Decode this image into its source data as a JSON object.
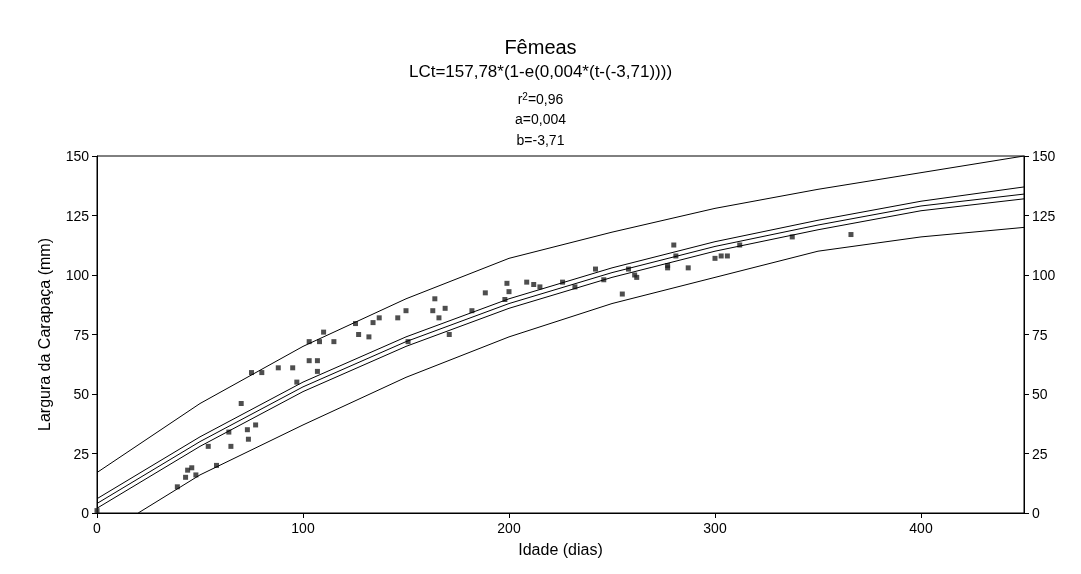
{
  "chart_data": {
    "type": "scatter",
    "title": "Fêmeas",
    "subtitle": "LCt=157,78*(1-e(0,004*(t-(-3,71))))",
    "annotations": [
      "r$^{2}$=0,96",
      "a=0,004",
      "b=-3,71"
    ],
    "xlabel": "Idade (dias)",
    "ylabel": "Largura da Carapaça (mm)",
    "xlim": [
      0,
      450
    ],
    "xticks": [
      0,
      100,
      200,
      300,
      400
    ],
    "ylim": [
      0,
      150
    ],
    "yticks": [
      0,
      25,
      50,
      75,
      100,
      125,
      150
    ],
    "y2lim": [
      0,
      150
    ],
    "y2ticks": [
      0,
      25,
      50,
      75,
      100,
      125,
      150
    ],
    "grid": false,
    "series": [
      {
        "marker": "square",
        "color": "#222222",
        "x": [
          0,
          39,
          43,
          44,
          46,
          48,
          54,
          58,
          64,
          65,
          70,
          73,
          73.5,
          77,
          75,
          80,
          88,
          95,
          97,
          103,
          103,
          107,
          107,
          108,
          110,
          115,
          125.5,
          127,
          132,
          134,
          137,
          146,
          150,
          151,
          163,
          164,
          166,
          169,
          171,
          182,
          188.5,
          199,
          198,
          200,
          208.6,
          212,
          215,
          226,
          232,
          242,
          246,
          255,
          258,
          261,
          262,
          277,
          277,
          280,
          281,
          287,
          300,
          303,
          306,
          312,
          337.5,
          366
        ],
        "values": [
          1,
          11,
          15,
          18,
          19,
          16,
          28,
          20,
          34,
          28,
          46,
          35,
          31,
          37,
          59,
          59,
          61,
          61,
          55,
          72,
          64,
          64,
          59.5,
          72,
          76,
          72,
          79.6,
          75,
          74,
          80,
          82,
          82,
          85,
          72,
          85,
          90,
          82,
          86,
          75,
          85,
          92.5,
          96.5,
          89.7,
          93,
          97,
          96,
          95,
          97,
          95,
          102.5,
          98,
          92,
          102.5,
          100,
          99,
          104,
          103,
          112.6,
          108,
          103,
          107,
          108,
          108,
          112.6,
          116,
          117
        ]
      },
      {
        "type": "line",
        "color": "#000000",
        "x": [
          0,
          50,
          100,
          150,
          200,
          250,
          300,
          350,
          400,
          450
        ],
        "values": [
          17,
          46,
          70,
          90,
          107,
          118,
          128,
          136,
          143,
          150
        ]
      },
      {
        "type": "line",
        "color": "#000000",
        "x": [
          0,
          50,
          100,
          150,
          200,
          250,
          300,
          350,
          400,
          450
        ],
        "values": [
          6,
          32,
          55,
          74,
          90,
          103,
          114,
          123,
          131,
          137
        ]
      },
      {
        "type": "line",
        "color": "#000000",
        "x": [
          0,
          50,
          100,
          150,
          200,
          250,
          300,
          350,
          400,
          450
        ],
        "values": [
          4,
          30,
          53,
          72,
          88,
          101,
          112,
          121,
          129,
          134
        ]
      },
      {
        "type": "line",
        "color": "#000000",
        "x": [
          0,
          50,
          100,
          150,
          200,
          250,
          300,
          350,
          400,
          450
        ],
        "values": [
          2,
          28,
          51,
          70,
          86,
          99,
          110,
          119,
          127,
          132
        ]
      },
      {
        "type": "line",
        "color": "#000000",
        "x": [
          20,
          50,
          100,
          150,
          200,
          250,
          300,
          350,
          400,
          450
        ],
        "values": [
          0,
          16,
          37,
          57,
          74,
          88,
          99,
          110,
          116,
          120
        ]
      }
    ]
  }
}
